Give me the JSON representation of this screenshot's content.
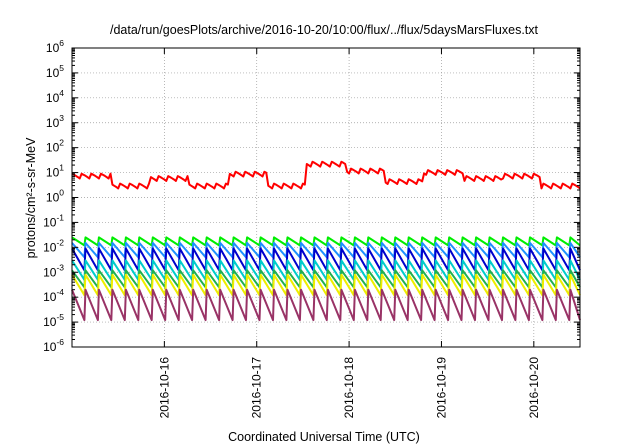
{
  "chart_data": {
    "type": "line",
    "title": "/data/run/goesPlots/archive/2016-10-20/10:00/flux/../flux/5daysMarsFluxes.txt",
    "xlabel": "Coordinated Universal Time (UTC)",
    "ylabel": "protons/cm²-s-sr-MeV",
    "yscale": "log",
    "ylim": [
      1e-06,
      1000000.0
    ],
    "xlim": [
      "2016-10-15T00:00",
      "2016-10-20T12:00"
    ],
    "grid": true,
    "y_ticks": [
      "10-6",
      "10-5",
      "10-4",
      "10-3",
      "10-2",
      "10-1",
      "100",
      "101",
      "102",
      "103",
      "104",
      "105",
      "106"
    ],
    "x_ticks": [
      "2016-10-16",
      "2016-10-17",
      "2016-10-18",
      "2016-10-19",
      "2016-10-20"
    ],
    "x_tick_hours": [
      24,
      48,
      72,
      96,
      120
    ],
    "series": [
      {
        "color": "#ff0000",
        "shape": "sawtooth_hi",
        "period_h": 2.5,
        "base": [
          5,
          2,
          4,
          2,
          6,
          2,
          15,
          8,
          3,
          7,
          4,
          5,
          2
        ],
        "amp": 1.8
      },
      {
        "color": "#00ee00",
        "shape": "sawtooth",
        "period_h": 3.5,
        "peak": 0.025,
        "trough": 0.012
      },
      {
        "color": "#1e90ff",
        "shape": "sawtooth",
        "period_h": 3.5,
        "peak": 0.015,
        "trough": 0.004
      },
      {
        "color": "#0000cc",
        "shape": "sawtooth",
        "period_h": 3.5,
        "peak": 0.009,
        "trough": 0.0012
      },
      {
        "color": "#00cccc",
        "shape": "sawtooth",
        "period_h": 3.5,
        "peak": 0.003,
        "trough": 0.0005
      },
      {
        "color": "#20b050",
        "shape": "sawtooth",
        "period_h": 3.5,
        "peak": 0.0012,
        "trough": 0.00025
      },
      {
        "color": "#eeee00",
        "shape": "sawtooth",
        "period_h": 3.5,
        "peak": 0.0008,
        "trough": 0.00012
      },
      {
        "color": "#993366",
        "shape": "sawtooth",
        "period_h": 3.5,
        "peak": 0.0002,
        "trough": 1.2e-05
      }
    ]
  }
}
